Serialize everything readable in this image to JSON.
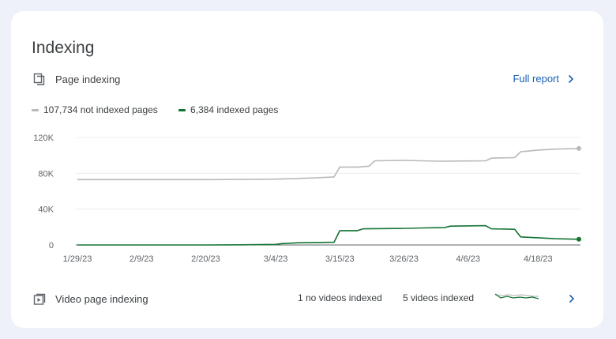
{
  "section_title": "Indexing",
  "page_indexing": {
    "label": "Page indexing",
    "full_report_label": "Full report"
  },
  "legend": {
    "not_indexed": "107,734 not indexed pages",
    "indexed": "6,384 indexed pages"
  },
  "colors": {
    "not_indexed": "#b9b9b9",
    "indexed": "#137333",
    "link": "#1a5fb4"
  },
  "chart_data": {
    "type": "line",
    "x_labels": [
      "1/29/23",
      "2/9/23",
      "2/20/23",
      "3/4/23",
      "3/15/23",
      "3/26/23",
      "4/6/23",
      "4/18/23"
    ],
    "y_ticks": [
      "0",
      "40K",
      "80K",
      "120K"
    ],
    "ylim": [
      0,
      120000
    ],
    "grid": true,
    "series": [
      {
        "name": "107,734 not indexed pages",
        "x": [
          "1/29/23",
          "2/9/23",
          "2/20/23",
          "3/1/23",
          "3/4/23",
          "3/7/23",
          "3/11/23",
          "3/14/23",
          "3/15/23",
          "3/18/23",
          "3/20/23",
          "3/21/23",
          "3/26/23",
          "3/29/23",
          "4/1/23",
          "4/6/23",
          "4/9/23",
          "4/10/23",
          "4/14/23",
          "4/15/23",
          "4/18/23",
          "4/21/23",
          "4/25/23"
        ],
        "values": [
          73000,
          73000,
          73000,
          73300,
          73500,
          74000,
          75000,
          76000,
          87000,
          87000,
          88000,
          94000,
          94500,
          94000,
          93500,
          93800,
          94000,
          97000,
          97500,
          104000,
          106000,
          107000,
          107734
        ]
      },
      {
        "name": "6,384 indexed pages",
        "x": [
          "1/29/23",
          "2/9/23",
          "2/20/23",
          "2/26/23",
          "3/4/23",
          "3/5/23",
          "3/8/23",
          "3/14/23",
          "3/15/23",
          "3/18/23",
          "3/19/23",
          "3/26/23",
          "3/29/23",
          "4/2/23",
          "4/3/23",
          "4/9/23",
          "4/10/23",
          "4/14/23",
          "4/15/23",
          "4/18/23",
          "4/21/23",
          "4/25/23"
        ],
        "values": [
          0,
          0,
          0,
          200,
          600,
          1500,
          2500,
          3000,
          16000,
          16000,
          18000,
          18500,
          19000,
          19500,
          21000,
          21500,
          18000,
          17500,
          9000,
          8000,
          7000,
          6384
        ]
      }
    ]
  },
  "video_indexing": {
    "label": "Video page indexing",
    "no_videos": "1 no videos indexed",
    "videos": "5 videos indexed"
  }
}
